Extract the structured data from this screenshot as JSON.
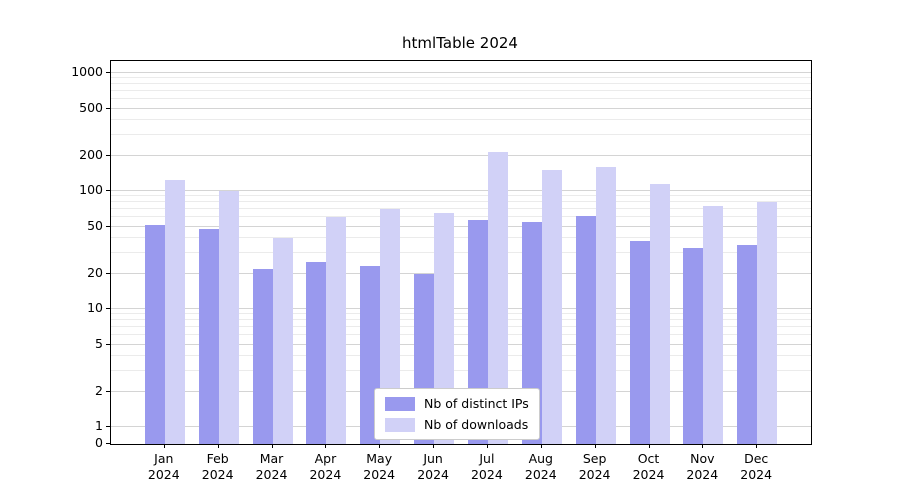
{
  "chart_data": {
    "type": "bar",
    "title": "htmlTable 2024",
    "categories": [
      "Jan",
      "Feb",
      "Mar",
      "Apr",
      "May",
      "Jun",
      "Jul",
      "Aug",
      "Sep",
      "Oct",
      "Nov",
      "Dec"
    ],
    "year_label": "2024",
    "series": [
      {
        "name": "Nb of distinct IPs",
        "color": "#9999ee",
        "values": [
          52,
          48,
          22,
          25,
          23,
          20,
          57,
          55,
          62,
          38,
          33,
          35
        ]
      },
      {
        "name": "Nb of downloads",
        "color": "#d1d1f7",
        "values": [
          125,
          100,
          40,
          60,
          70,
          65,
          215,
          150,
          160,
          115,
          75,
          80
        ]
      }
    ],
    "yscale": "symlog",
    "yticks": [
      0,
      1,
      2,
      5,
      10,
      20,
      50,
      100,
      200,
      500,
      1000
    ],
    "ylim": [
      0,
      1000
    ],
    "grid": true,
    "legend_position": "bottom-center"
  }
}
